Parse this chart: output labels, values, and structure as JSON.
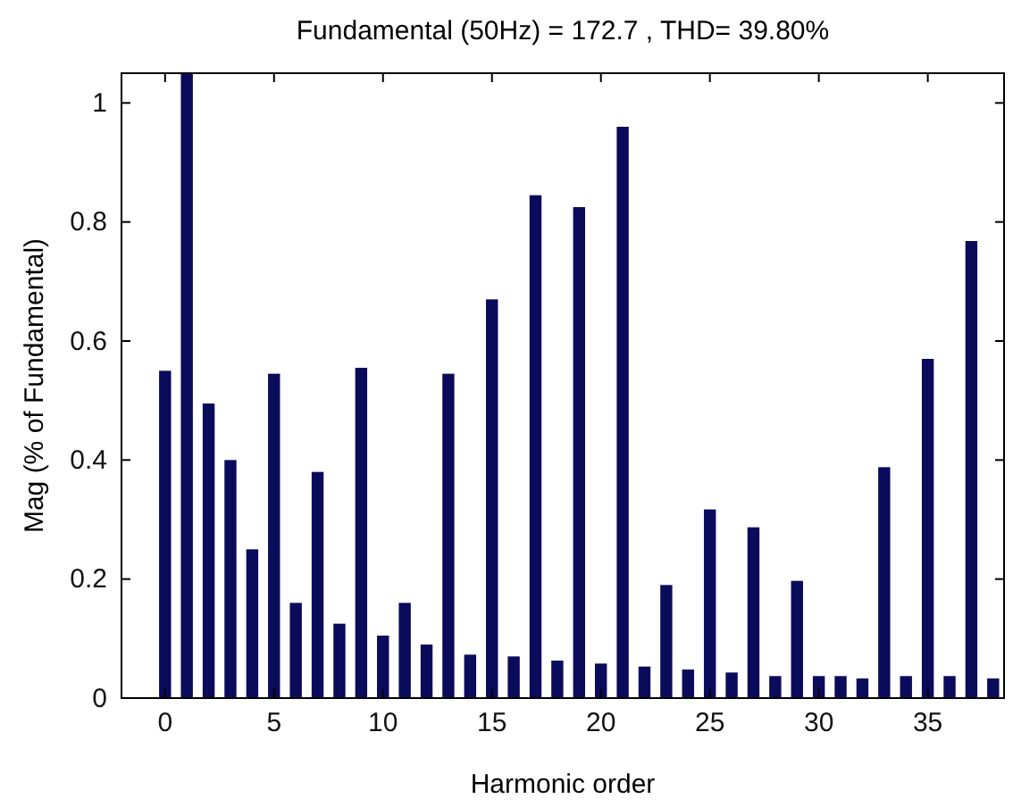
{
  "chart_data": {
    "type": "bar",
    "title": "Fundamental (50Hz) = 172.7 , THD= 39.80%",
    "xlabel": "Harmonic order",
    "ylabel": "Mag (% of Fundamental)",
    "x": [
      0,
      1,
      2,
      3,
      4,
      5,
      6,
      7,
      8,
      9,
      10,
      11,
      12,
      13,
      14,
      15,
      16,
      17,
      18,
      19,
      20,
      21,
      22,
      23,
      24,
      25,
      26,
      27,
      28,
      29,
      30,
      31,
      32,
      33,
      34,
      35,
      36,
      37,
      38
    ],
    "values": [
      0.55,
      1.05,
      0.495,
      0.4,
      0.25,
      0.545,
      0.16,
      0.38,
      0.125,
      0.555,
      0.105,
      0.16,
      0.09,
      0.545,
      0.073,
      0.67,
      0.07,
      0.845,
      0.063,
      0.825,
      0.058,
      0.96,
      0.053,
      0.19,
      0.048,
      0.317,
      0.043,
      0.287,
      0.037,
      0.197,
      0.037,
      0.037,
      0.033,
      0.388,
      0.037,
      0.57,
      0.037,
      0.768,
      0.033
    ],
    "color": "#0b0b5c",
    "xlim": [
      -2,
      38.5
    ],
    "xticks": [
      0,
      5,
      10,
      15,
      20,
      25,
      30,
      35
    ],
    "ylim": [
      0,
      1.05
    ],
    "yticks": [
      0,
      0.2,
      0.4,
      0.6,
      0.8,
      1
    ],
    "grid": false
  }
}
